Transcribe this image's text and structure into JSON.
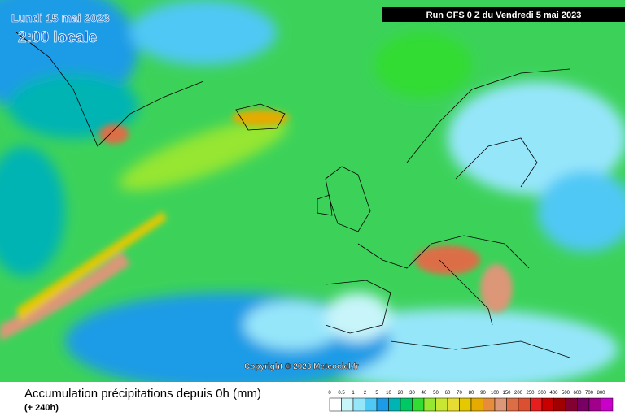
{
  "header": {
    "date": "Lundi 15 mai 2023",
    "time": "2:00 locale",
    "run": "Run GFS 0 Z du Vendredi 5 mai 2023"
  },
  "map": {
    "copyright": "Copyright © 2023 Meteociel.fr"
  },
  "footer": {
    "title": "Accumulation précipitations depuis 0h (mm)",
    "lead": "(+ 240h)"
  },
  "legend": {
    "labels": [
      "0",
      "0.5",
      "1",
      "2",
      "5",
      "10",
      "20",
      "30",
      "40",
      "50",
      "60",
      "70",
      "80",
      "90",
      "100",
      "150",
      "200",
      "250",
      "300",
      "400",
      "500",
      "600",
      "700",
      "800"
    ],
    "colors": [
      "#ffffff",
      "#c8f5fa",
      "#96e6fa",
      "#50c8f5",
      "#1e9be6",
      "#00b4b4",
      "#00c864",
      "#32dc32",
      "#96e632",
      "#c8e632",
      "#e6dc32",
      "#e6c800",
      "#e6aa00",
      "#e68c3c",
      "#dc9678",
      "#dc6e46",
      "#dc5032",
      "#e61e1e",
      "#c80000",
      "#a00000",
      "#820032",
      "#780064",
      "#a0008c",
      "#c800c8"
    ]
  }
}
